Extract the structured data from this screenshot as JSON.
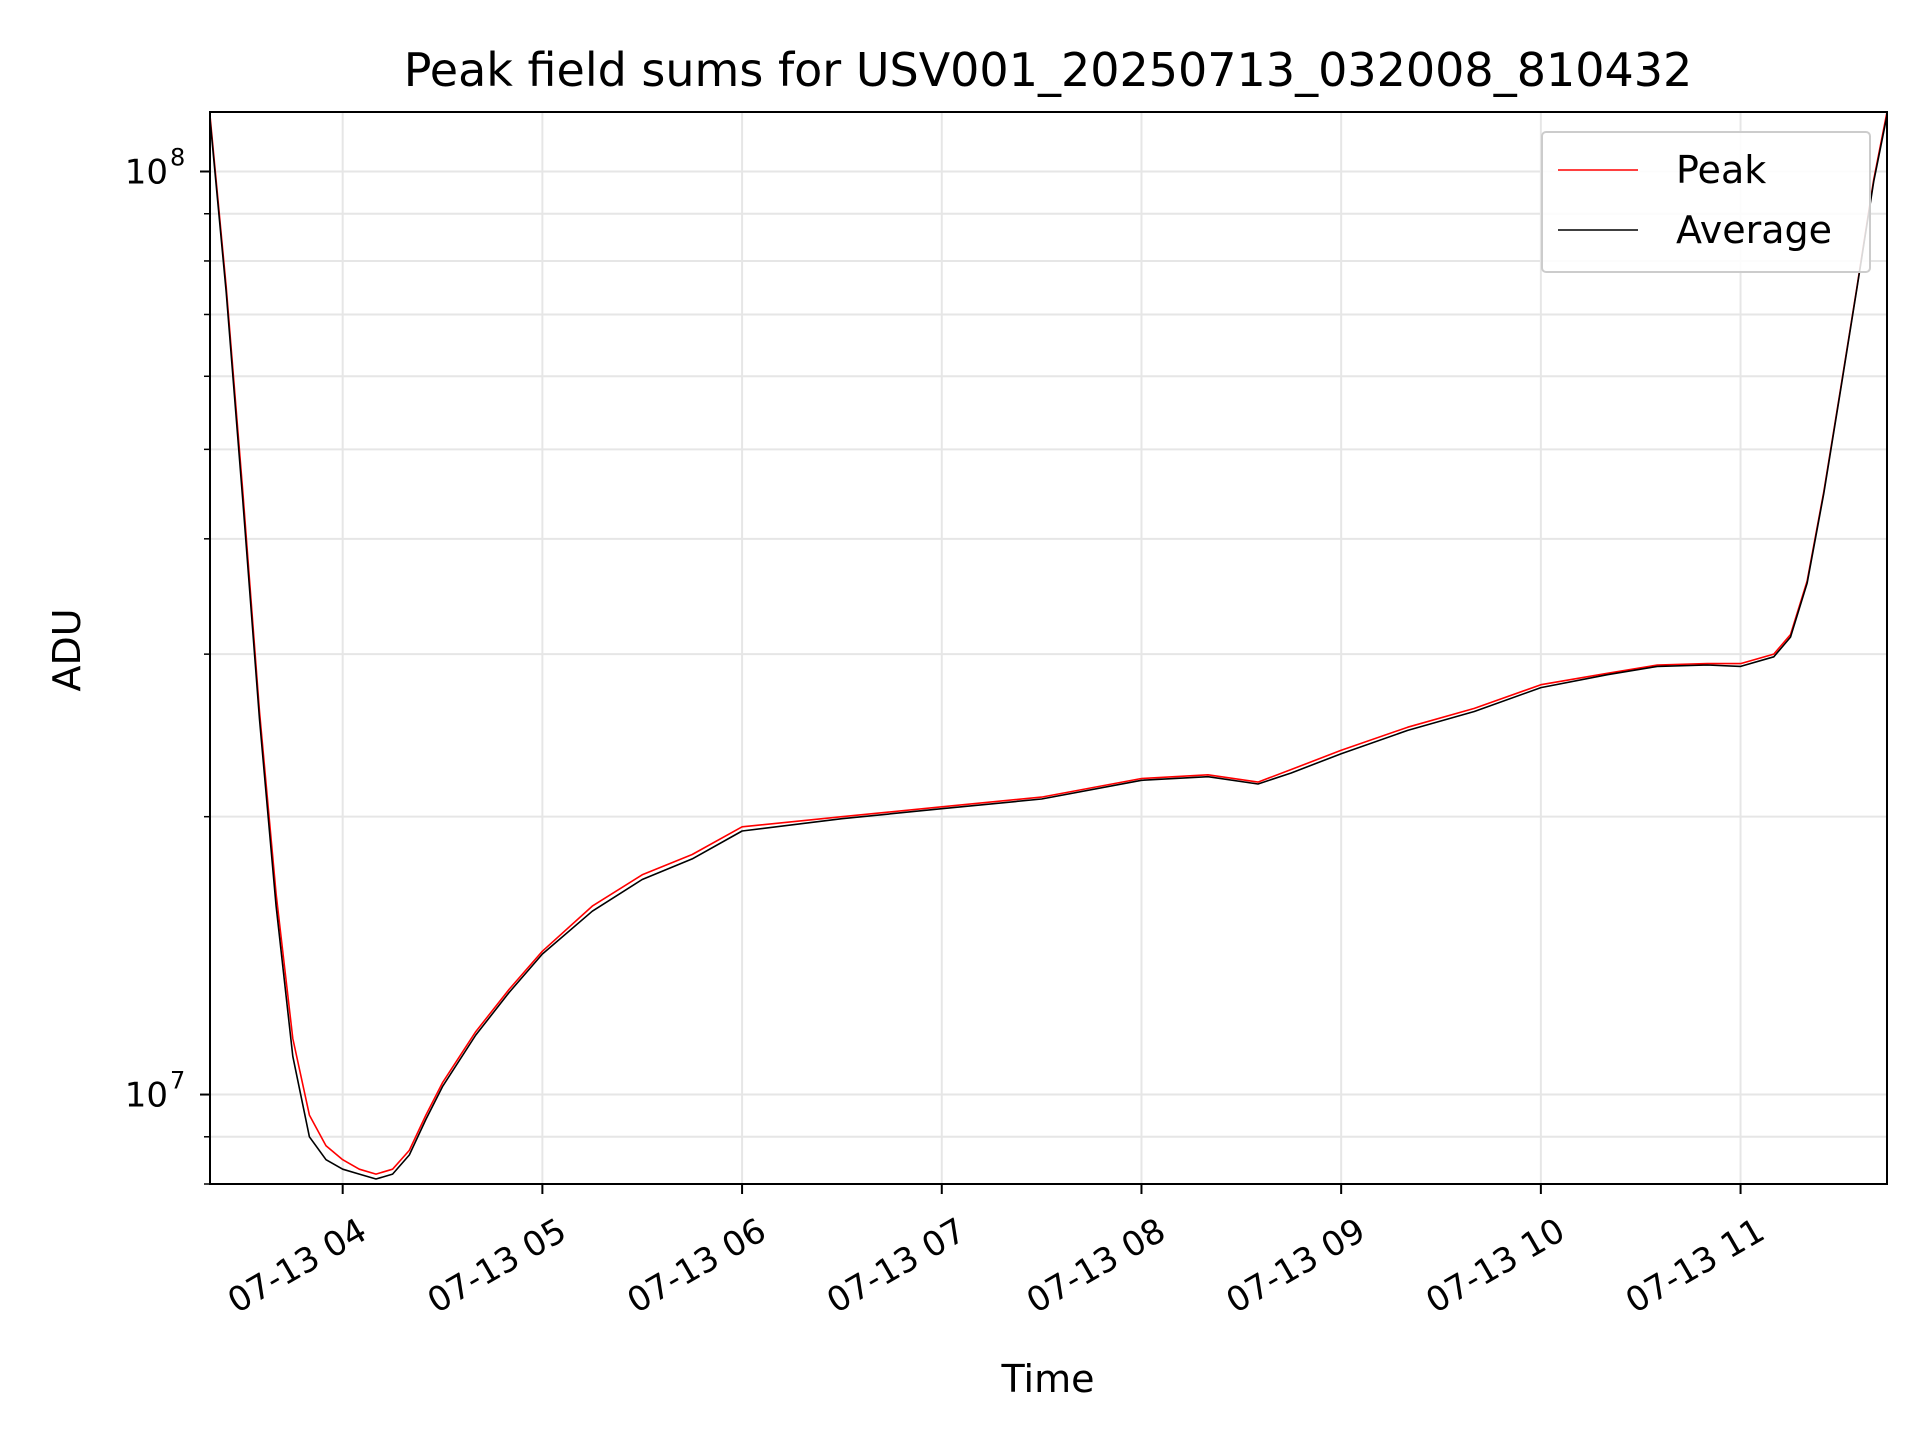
{
  "chart_data": {
    "type": "line",
    "title": "Peak field sums for USV001_20250713_032008_810432",
    "xlabel": "Time",
    "ylabel": "ADU",
    "x_axis_type": "datetime",
    "xlim": [
      "2025-07-13T03:20:08",
      "2025-07-13T11:44:00"
    ],
    "ylim": [
      8000000,
      116000000
    ],
    "y_scale": "log",
    "y_major_ticks": [
      {
        "value": 10000000,
        "base": "10",
        "exp": "7"
      },
      {
        "value": 100000000,
        "base": "10",
        "exp": "8"
      }
    ],
    "y_minor_ticks": [
      8000000,
      9000000,
      20000000,
      30000000,
      40000000,
      50000000,
      60000000,
      70000000,
      80000000,
      90000000
    ],
    "x_ticks": [
      {
        "value": "2025-07-13T04:00:00",
        "label": "07-13 04"
      },
      {
        "value": "2025-07-13T05:00:00",
        "label": "07-13 05"
      },
      {
        "value": "2025-07-13T06:00:00",
        "label": "07-13 06"
      },
      {
        "value": "2025-07-13T07:00:00",
        "label": "07-13 07"
      },
      {
        "value": "2025-07-13T08:00:00",
        "label": "07-13 08"
      },
      {
        "value": "2025-07-13T09:00:00",
        "label": "07-13 09"
      },
      {
        "value": "2025-07-13T10:00:00",
        "label": "07-13 10"
      },
      {
        "value": "2025-07-13T11:00:00",
        "label": "07-13 11"
      }
    ],
    "grid": true,
    "legend_position": "top-right",
    "series": [
      {
        "name": "Peak",
        "color": "#ff0000",
        "x": [
          "2025-07-13T03:20:08",
          "2025-07-13T03:25:00",
          "2025-07-13T03:30:00",
          "2025-07-13T03:35:00",
          "2025-07-13T03:40:00",
          "2025-07-13T03:45:00",
          "2025-07-13T03:50:00",
          "2025-07-13T03:55:00",
          "2025-07-13T04:00:00",
          "2025-07-13T04:05:00",
          "2025-07-13T04:10:00",
          "2025-07-13T04:15:00",
          "2025-07-13T04:20:00",
          "2025-07-13T04:25:00",
          "2025-07-13T04:30:00",
          "2025-07-13T04:40:00",
          "2025-07-13T04:50:00",
          "2025-07-13T05:00:00",
          "2025-07-13T05:15:00",
          "2025-07-13T05:30:00",
          "2025-07-13T05:45:00",
          "2025-07-13T06:00:00",
          "2025-07-13T06:30:00",
          "2025-07-13T07:00:00",
          "2025-07-13T07:30:00",
          "2025-07-13T08:00:00",
          "2025-07-13T08:20:00",
          "2025-07-13T08:35:00",
          "2025-07-13T08:45:00",
          "2025-07-13T09:00:00",
          "2025-07-13T09:20:00",
          "2025-07-13T09:40:00",
          "2025-07-13T10:00:00",
          "2025-07-13T10:20:00",
          "2025-07-13T10:35:00",
          "2025-07-13T10:50:00",
          "2025-07-13T11:00:00",
          "2025-07-13T11:10:00",
          "2025-07-13T11:15:00",
          "2025-07-13T11:20:00",
          "2025-07-13T11:25:00",
          "2025-07-13T11:30:00",
          "2025-07-13T11:35:00",
          "2025-07-13T11:40:00",
          "2025-07-13T11:44:00"
        ],
        "y": [
          115000000,
          75000000,
          45000000,
          26000000,
          16500000,
          11500000,
          9500000,
          8800000,
          8500000,
          8300000,
          8200000,
          8300000,
          8700000,
          9500000,
          10300000,
          11700000,
          13000000,
          14300000,
          16000000,
          17300000,
          18200000,
          19500000,
          20000000,
          20500000,
          21000000,
          22000000,
          22200000,
          21800000,
          22500000,
          23600000,
          25000000,
          26200000,
          27800000,
          28600000,
          29200000,
          29300000,
          29300000,
          30000000,
          31500000,
          36000000,
          45000000,
          58000000,
          75000000,
          98000000,
          116000000
        ]
      },
      {
        "name": "Average",
        "color": "#000000",
        "x": [
          "2025-07-13T03:20:08",
          "2025-07-13T03:25:00",
          "2025-07-13T03:30:00",
          "2025-07-13T03:35:00",
          "2025-07-13T03:40:00",
          "2025-07-13T03:45:00",
          "2025-07-13T03:50:00",
          "2025-07-13T03:55:00",
          "2025-07-13T04:00:00",
          "2025-07-13T04:05:00",
          "2025-07-13T04:10:00",
          "2025-07-13T04:15:00",
          "2025-07-13T04:20:00",
          "2025-07-13T04:25:00",
          "2025-07-13T04:30:00",
          "2025-07-13T04:40:00",
          "2025-07-13T04:50:00",
          "2025-07-13T05:00:00",
          "2025-07-13T05:15:00",
          "2025-07-13T05:30:00",
          "2025-07-13T05:45:00",
          "2025-07-13T06:00:00",
          "2025-07-13T06:30:00",
          "2025-07-13T07:00:00",
          "2025-07-13T07:30:00",
          "2025-07-13T08:00:00",
          "2025-07-13T08:20:00",
          "2025-07-13T08:35:00",
          "2025-07-13T08:45:00",
          "2025-07-13T09:00:00",
          "2025-07-13T09:20:00",
          "2025-07-13T09:40:00",
          "2025-07-13T10:00:00",
          "2025-07-13T10:20:00",
          "2025-07-13T10:35:00",
          "2025-07-13T10:50:00",
          "2025-07-13T11:00:00",
          "2025-07-13T11:10:00",
          "2025-07-13T11:15:00",
          "2025-07-13T11:20:00",
          "2025-07-13T11:25:00",
          "2025-07-13T11:30:00",
          "2025-07-13T11:35:00",
          "2025-07-13T11:40:00",
          "2025-07-13T11:44:00"
        ],
        "y": [
          114000000,
          74000000,
          44000000,
          25500000,
          16000000,
          11000000,
          9000000,
          8500000,
          8300000,
          8200000,
          8100000,
          8200000,
          8600000,
          9400000,
          10200000,
          11600000,
          12900000,
          14200000,
          15800000,
          17100000,
          18000000,
          19300000,
          19900000,
          20400000,
          20900000,
          21900000,
          22100000,
          21700000,
          22300000,
          23400000,
          24800000,
          26000000,
          27600000,
          28500000,
          29100000,
          29200000,
          29100000,
          29800000,
          31300000,
          35800000,
          44800000,
          57800000,
          74800000,
          97500000,
          115000000
        ]
      }
    ]
  }
}
